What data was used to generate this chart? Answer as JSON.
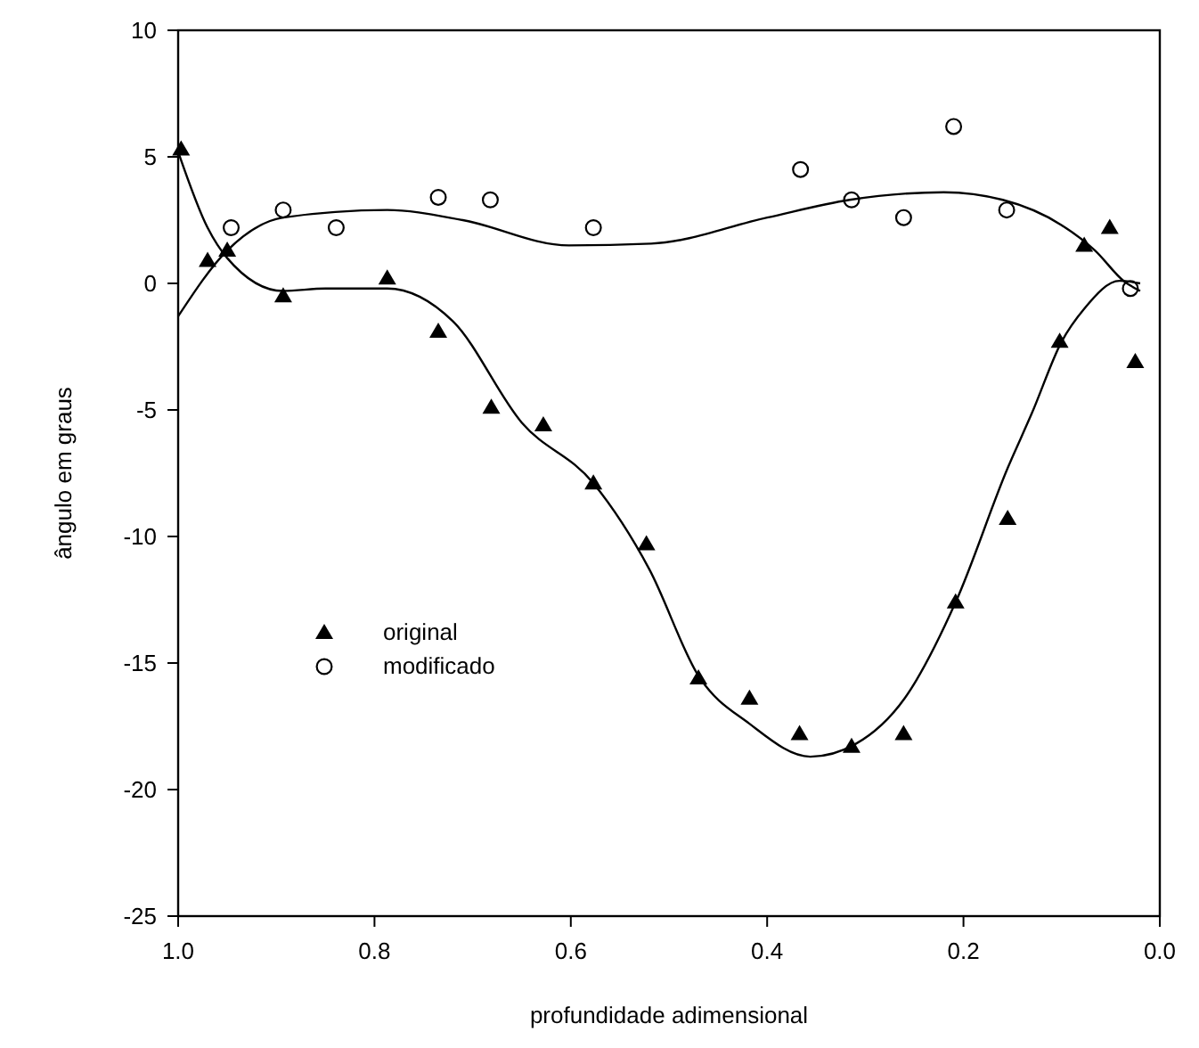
{
  "chart_data": {
    "type": "scatter",
    "xlabel": "profundidade adimensional",
    "ylabel": "ângulo em graus",
    "xlim": [
      1,
      0
    ],
    "xticks": [
      {
        "value": 1,
        "label": "1.0"
      },
      {
        "value": 0.8,
        "label": "0.8"
      },
      {
        "value": 0.6,
        "label": "0.6"
      },
      {
        "value": 0.4,
        "label": "0.4"
      },
      {
        "value": 0.2,
        "label": "0.2"
      },
      {
        "value": 0,
        "label": "0.0"
      }
    ],
    "ylim": [
      -25,
      10
    ],
    "yticks": [
      10,
      5,
      0,
      -5,
      -10,
      -15,
      -20,
      -25
    ],
    "grid": false,
    "legend": "bottom left",
    "series": [
      {
        "name": "original",
        "marker": "triangle",
        "color": "#000000",
        "x": [
          0.997,
          0.97,
          0.95,
          0.893,
          0.787,
          0.735,
          0.681,
          0.628,
          0.577,
          0.523,
          0.47,
          0.418,
          0.367,
          0.314,
          0.261,
          0.208,
          0.155,
          0.102,
          0.077,
          0.051,
          0.025
        ],
        "values": [
          5.3,
          0.9,
          1.3,
          -0.5,
          0.2,
          -1.9,
          -4.9,
          -5.6,
          -7.9,
          -10.3,
          -15.6,
          -16.4,
          -17.8,
          -18.3,
          -17.8,
          -12.6,
          -9.3,
          -2.3,
          1.5,
          2.2,
          -3.1
        ]
      },
      {
        "name": "modificado",
        "marker": "circle",
        "color": "#000000",
        "x": [
          0.946,
          0.893,
          0.839,
          0.735,
          0.682,
          0.577,
          0.366,
          0.314,
          0.261,
          0.21,
          0.156,
          0.03
        ],
        "values": [
          2.2,
          2.9,
          2.2,
          3.4,
          3.3,
          2.2,
          4.5,
          3.3,
          2.6,
          6.2,
          2.9,
          -0.2
        ]
      },
      {
        "type": "line",
        "marker": "none",
        "line_style": "solid",
        "color": "#000000",
        "x": [
          1,
          0.97,
          0.95,
          0.893,
          0.85,
          0.787,
          0.72,
          0.65,
          0.577,
          0.52,
          0.47,
          0.418,
          0.356,
          0.31,
          0.26,
          0.208,
          0.155,
          0.13,
          0.1,
          0.077,
          0.041,
          0.02
        ],
        "values": [
          5.2,
          2.2,
          1.0,
          -0.3,
          -0.2,
          -0.2,
          -1.5,
          -5.5,
          -7.9,
          -11.3,
          -15.5,
          -17.4,
          -18.7,
          -18.2,
          -16.4,
          -12.6,
          -7.3,
          -5.1,
          -2.3,
          -1,
          0.1,
          0
        ]
      },
      {
        "type": "line",
        "marker": "none",
        "line_style": "solid",
        "color": "#000000",
        "x": [
          1,
          0.95,
          0.893,
          0.787,
          0.71,
          0.602,
          0.518,
          0.4,
          0.316,
          0.22,
          0.16,
          0.1,
          0.066,
          0.036,
          0.02
        ],
        "values": [
          -1.3,
          1.3,
          2.6,
          2.9,
          2.5,
          1.5,
          1.57,
          2.6,
          3.3,
          3.6,
          3.3,
          2.3,
          1.3,
          0.07,
          -0.3
        ]
      }
    ]
  }
}
